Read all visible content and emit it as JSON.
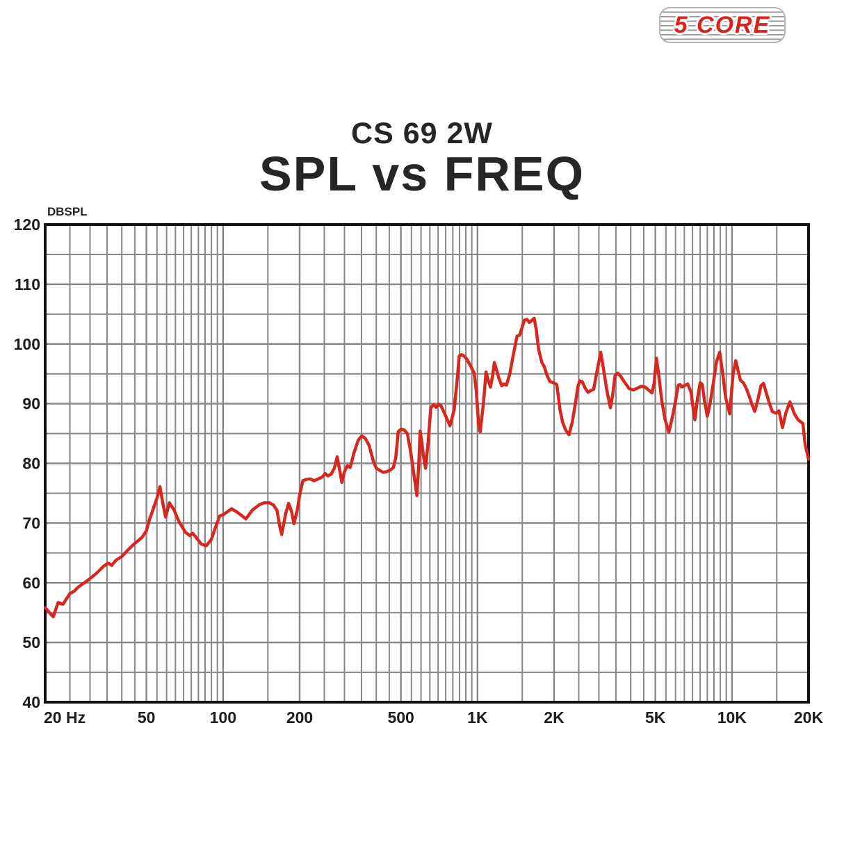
{
  "logo": {
    "text": "5 CORE",
    "color": "#d8231d"
  },
  "header": {
    "subtitle": "CS 69 2W",
    "title": "SPL vs FREQ"
  },
  "chart_data": {
    "type": "line",
    "title": "SPL vs FREQ",
    "subtitle": "CS 69 2W",
    "y_unit": "DBSPL",
    "x_scale": "log",
    "xlim": [
      20,
      20000
    ],
    "ylim": [
      40,
      120
    ],
    "grid": true,
    "line_color": "#d6281f",
    "grid_color": "#878787",
    "frame_color": "#111111",
    "y_ticks": [
      120,
      110,
      100,
      90,
      80,
      70,
      60,
      50,
      40
    ],
    "x_ticks": [
      {
        "f": 20,
        "label": "20 Hz"
      },
      {
        "f": 50,
        "label": "50"
      },
      {
        "f": 100,
        "label": "100"
      },
      {
        "f": 200,
        "label": "200"
      },
      {
        "f": 500,
        "label": "500"
      },
      {
        "f": 1000,
        "label": "1K"
      },
      {
        "f": 2000,
        "label": "2K"
      },
      {
        "f": 5000,
        "label": "5K"
      },
      {
        "f": 10000,
        "label": "10K"
      },
      {
        "f": 20000,
        "label": "20K"
      }
    ],
    "minor_grid_freqs": [
      25,
      30,
      35,
      40,
      45,
      55,
      60,
      65,
      70,
      75,
      80,
      85,
      90,
      95,
      150,
      250,
      300,
      350,
      400,
      450,
      550,
      600,
      650,
      700,
      750,
      800,
      850,
      900,
      950,
      1500,
      2500,
      3000,
      3500,
      4000,
      4500,
      5500,
      6000,
      6500,
      7000,
      7500,
      8000,
      8500,
      9000,
      9500,
      15000
    ],
    "major_grid_freqs": [
      50,
      100,
      200,
      500,
      1000,
      2000,
      5000,
      10000
    ],
    "minor_grid_db": [
      45,
      55,
      65,
      75,
      85,
      95,
      105,
      115
    ],
    "major_grid_db": [
      50,
      60,
      70,
      80,
      90,
      100,
      110
    ],
    "series": [
      {
        "name": "SPL",
        "points": [
          [
            20,
            55.8
          ],
          [
            21,
            54.8
          ],
          [
            21.5,
            54.3
          ],
          [
            22.5,
            56.7
          ],
          [
            23.5,
            56.4
          ],
          [
            25,
            58.2
          ],
          [
            26,
            58.6
          ],
          [
            27,
            59.3
          ],
          [
            28.5,
            60.0
          ],
          [
            30,
            60.7
          ],
          [
            32,
            61.7
          ],
          [
            34,
            62.8
          ],
          [
            35.5,
            63.3
          ],
          [
            36.5,
            62.9
          ],
          [
            38,
            63.8
          ],
          [
            40,
            64.4
          ],
          [
            42.5,
            65.6
          ],
          [
            45,
            66.6
          ],
          [
            48,
            67.6
          ],
          [
            50,
            68.7
          ],
          [
            51.5,
            70.7
          ],
          [
            53,
            72.2
          ],
          [
            55,
            74.2
          ],
          [
            56.5,
            76.1
          ],
          [
            58,
            73.3
          ],
          [
            59.5,
            71.0
          ],
          [
            61.5,
            73.4
          ],
          [
            64,
            72.3
          ],
          [
            67,
            70.3
          ],
          [
            71,
            68.5
          ],
          [
            74,
            67.9
          ],
          [
            76,
            68.3
          ],
          [
            79,
            67.4
          ],
          [
            82,
            66.5
          ],
          [
            86,
            66.2
          ],
          [
            90,
            67.3
          ],
          [
            93,
            69.1
          ],
          [
            97,
            71.2
          ],
          [
            100,
            71.4
          ],
          [
            104,
            71.9
          ],
          [
            108,
            72.4
          ],
          [
            113,
            71.9
          ],
          [
            118,
            71.3
          ],
          [
            123,
            70.7
          ],
          [
            130,
            72.1
          ],
          [
            139,
            73.1
          ],
          [
            145,
            73.4
          ],
          [
            152,
            73.4
          ],
          [
            158,
            73.0
          ],
          [
            163,
            72.1
          ],
          [
            167,
            69.5
          ],
          [
            170,
            68.1
          ],
          [
            176,
            71.5
          ],
          [
            181,
            73.3
          ],
          [
            186,
            71.9
          ],
          [
            190,
            69.9
          ],
          [
            196,
            72.3
          ],
          [
            200,
            74.7
          ],
          [
            206,
            77.1
          ],
          [
            212,
            77.3
          ],
          [
            220,
            77.4
          ],
          [
            228,
            77.1
          ],
          [
            237,
            77.4
          ],
          [
            245,
            77.7
          ],
          [
            252,
            78.3
          ],
          [
            258,
            77.9
          ],
          [
            266,
            78.2
          ],
          [
            274,
            79.2
          ],
          [
            281,
            81.1
          ],
          [
            288,
            78.6
          ],
          [
            293,
            76.8
          ],
          [
            300,
            78.6
          ],
          [
            308,
            79.6
          ],
          [
            316,
            79.3
          ],
          [
            326,
            81.6
          ],
          [
            340,
            83.9
          ],
          [
            351,
            84.6
          ],
          [
            362,
            84.2
          ],
          [
            375,
            83.0
          ],
          [
            390,
            80.3
          ],
          [
            400,
            79.2
          ],
          [
            414,
            78.8
          ],
          [
            426,
            78.5
          ],
          [
            440,
            78.6
          ],
          [
            455,
            78.9
          ],
          [
            467,
            79.3
          ],
          [
            477,
            80.9
          ],
          [
            488,
            85.3
          ],
          [
            500,
            85.7
          ],
          [
            515,
            85.6
          ],
          [
            530,
            85.0
          ],
          [
            545,
            82.2
          ],
          [
            562,
            78.3
          ],
          [
            578,
            74.6
          ],
          [
            588,
            80.0
          ],
          [
            595,
            85.4
          ],
          [
            603,
            83.8
          ],
          [
            613,
            81.3
          ],
          [
            625,
            79.2
          ],
          [
            640,
            83.6
          ],
          [
            655,
            89.3
          ],
          [
            672,
            89.8
          ],
          [
            688,
            89.4
          ],
          [
            703,
            89.9
          ],
          [
            720,
            89.6
          ],
          [
            745,
            88.2
          ],
          [
            780,
            86.3
          ],
          [
            810,
            89.0
          ],
          [
            830,
            93.5
          ],
          [
            848,
            98.0
          ],
          [
            865,
            98.2
          ],
          [
            885,
            98.0
          ],
          [
            910,
            97.4
          ],
          [
            940,
            96.3
          ],
          [
            970,
            95.1
          ],
          [
            990,
            92.0
          ],
          [
            1010,
            86.5
          ],
          [
            1025,
            85.3
          ],
          [
            1055,
            90.0
          ],
          [
            1080,
            95.3
          ],
          [
            1100,
            94.0
          ],
          [
            1125,
            92.8
          ],
          [
            1145,
            94.5
          ],
          [
            1165,
            96.9
          ],
          [
            1190,
            95.5
          ],
          [
            1215,
            94.2
          ],
          [
            1245,
            93.0
          ],
          [
            1270,
            93.3
          ],
          [
            1300,
            93.1
          ],
          [
            1340,
            95.0
          ],
          [
            1380,
            98.0
          ],
          [
            1430,
            101.3
          ],
          [
            1465,
            101.5
          ],
          [
            1500,
            102.9
          ],
          [
            1530,
            104.0
          ],
          [
            1565,
            104.1
          ],
          [
            1600,
            103.6
          ],
          [
            1640,
            104.0
          ],
          [
            1670,
            104.3
          ],
          [
            1700,
            102.5
          ],
          [
            1740,
            99.0
          ],
          [
            1790,
            96.9
          ],
          [
            1830,
            96.2
          ],
          [
            1880,
            94.6
          ],
          [
            1930,
            93.7
          ],
          [
            1990,
            93.5
          ],
          [
            2050,
            93.2
          ],
          [
            2110,
            89.0
          ],
          [
            2160,
            86.9
          ],
          [
            2220,
            85.6
          ],
          [
            2290,
            84.8
          ],
          [
            2360,
            87.0
          ],
          [
            2420,
            89.8
          ],
          [
            2480,
            92.8
          ],
          [
            2520,
            93.8
          ],
          [
            2580,
            93.7
          ],
          [
            2650,
            92.6
          ],
          [
            2720,
            91.9
          ],
          [
            2790,
            92.2
          ],
          [
            2860,
            92.4
          ],
          [
            2950,
            95.5
          ],
          [
            3050,
            98.6
          ],
          [
            3150,
            95.0
          ],
          [
            3230,
            92.0
          ],
          [
            3330,
            89.3
          ],
          [
            3400,
            91.5
          ],
          [
            3470,
            94.7
          ],
          [
            3560,
            95.1
          ],
          [
            3650,
            94.6
          ],
          [
            3800,
            93.5
          ],
          [
            3950,
            92.5
          ],
          [
            4100,
            92.3
          ],
          [
            4250,
            92.6
          ],
          [
            4400,
            92.9
          ],
          [
            4550,
            92.8
          ],
          [
            4700,
            92.3
          ],
          [
            4850,
            91.8
          ],
          [
            4950,
            93.5
          ],
          [
            5050,
            97.6
          ],
          [
            5150,
            95.0
          ],
          [
            5300,
            90.5
          ],
          [
            5450,
            87.5
          ],
          [
            5650,
            85.2
          ],
          [
            5850,
            88.0
          ],
          [
            6000,
            90.4
          ],
          [
            6150,
            93.1
          ],
          [
            6250,
            93.2
          ],
          [
            6350,
            92.8
          ],
          [
            6500,
            93.0
          ],
          [
            6700,
            93.3
          ],
          [
            6900,
            92.0
          ],
          [
            7050,
            89.0
          ],
          [
            7150,
            87.3
          ],
          [
            7300,
            90.5
          ],
          [
            7500,
            93.5
          ],
          [
            7650,
            93.2
          ],
          [
            7800,
            90.5
          ],
          [
            8000,
            87.9
          ],
          [
            8200,
            90.0
          ],
          [
            8450,
            93.5
          ],
          [
            8700,
            97.1
          ],
          [
            8950,
            98.6
          ],
          [
            9200,
            95.0
          ],
          [
            9450,
            91.0
          ],
          [
            9800,
            88.3
          ],
          [
            10100,
            95.0
          ],
          [
            10350,
            97.2
          ],
          [
            10600,
            95.3
          ],
          [
            10800,
            93.9
          ],
          [
            11100,
            93.5
          ],
          [
            11400,
            92.5
          ],
          [
            11700,
            91.2
          ],
          [
            12000,
            89.8
          ],
          [
            12300,
            88.7
          ],
          [
            12700,
            91.0
          ],
          [
            13000,
            93.0
          ],
          [
            13300,
            93.4
          ],
          [
            13900,
            90.6
          ],
          [
            14400,
            88.7
          ],
          [
            14900,
            88.4
          ],
          [
            15300,
            88.8
          ],
          [
            15800,
            86.0
          ],
          [
            16300,
            88.5
          ],
          [
            16900,
            90.3
          ],
          [
            17600,
            88.3
          ],
          [
            18200,
            87.3
          ],
          [
            18700,
            86.9
          ],
          [
            19000,
            86.7
          ],
          [
            19400,
            83.1
          ],
          [
            20000,
            80.7
          ]
        ]
      }
    ]
  }
}
